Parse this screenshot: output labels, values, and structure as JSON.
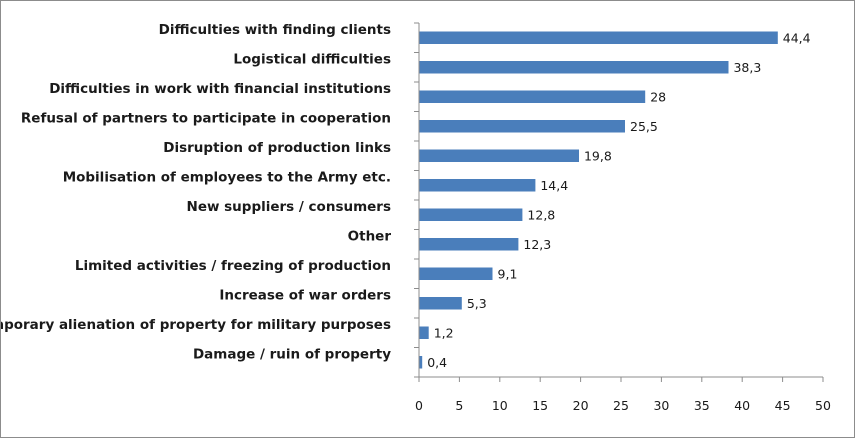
{
  "chart_data": {
    "type": "bar",
    "orientation": "horizontal",
    "categories": [
      "Difficulties with finding clients",
      "Logistical difficulties",
      "Difficulties in work with financial institutions",
      "Refusal of partners to participate in cooperation",
      "Disruption of production links",
      "Mobilisation of employees to the Army etc.",
      "New suppliers / consumers",
      "Other",
      "Limited activities / freezing of production",
      "Increase of war orders",
      "Temporary alienation of property for military purposes",
      "Damage / ruin of property"
    ],
    "values": [
      44.4,
      38.3,
      28,
      25.5,
      19.8,
      14.4,
      12.8,
      12.3,
      9.1,
      5.3,
      1.2,
      0.4
    ],
    "value_labels": [
      "44,4",
      "38,3",
      "28",
      "25,5",
      "19,8",
      "14,4",
      "12,8",
      "12,3",
      "9,1",
      "5,3",
      "1,2",
      "0,4"
    ],
    "xlim": [
      0,
      50
    ],
    "xticks": [
      0,
      5,
      10,
      15,
      20,
      25,
      30,
      35,
      40,
      45,
      50
    ],
    "grid": false,
    "legend": "none",
    "bar_color": "#4a7ebb"
  }
}
